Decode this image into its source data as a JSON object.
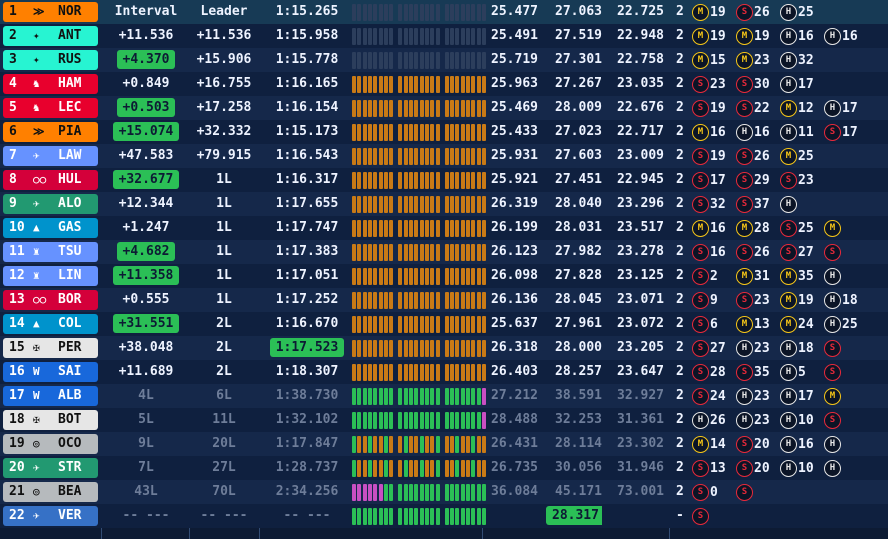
{
  "headers": {
    "interval": "Interval",
    "leader": "Leader"
  },
  "rows": [
    {
      "pos": "1",
      "code": "NOR",
      "logo": "≫",
      "team_color": "#ff8000",
      "pos_text": "#111",
      "interval": "Interval",
      "leader": "Leader",
      "best": "1:15.265",
      "sectors": [
        "25.477",
        "27.063",
        "22.725"
      ],
      "stops": "2",
      "stints": [
        {
          "tyre": "M",
          "lap": "19"
        },
        {
          "tyre": "S",
          "lap": "26"
        },
        {
          "tyre": "H",
          "lap": "25"
        }
      ],
      "lead": true
    },
    {
      "pos": "2",
      "code": "ANT",
      "logo": "✦",
      "team_color": "#27f4d2",
      "pos_text": "#111",
      "interval": "+11.536",
      "leader": "+11.536",
      "best": "1:15.958",
      "sectors": [
        "25.491",
        "27.519",
        "22.948"
      ],
      "stops": "2",
      "stints": [
        {
          "tyre": "M",
          "lap": "19"
        },
        {
          "tyre": "M",
          "lap": "19"
        },
        {
          "tyre": "H",
          "lap": "16"
        },
        {
          "tyre": "H",
          "lap": "16"
        }
      ]
    },
    {
      "pos": "3",
      "code": "RUS",
      "logo": "✦",
      "team_color": "#27f4d2",
      "pos_text": "#111",
      "interval": "+4.370",
      "interval_pill": true,
      "leader": "+15.906",
      "best": "1:15.778",
      "sectors": [
        "25.719",
        "27.301",
        "22.758"
      ],
      "stops": "2",
      "stints": [
        {
          "tyre": "M",
          "lap": "15"
        },
        {
          "tyre": "M",
          "lap": "23"
        },
        {
          "tyre": "H",
          "lap": "32"
        }
      ]
    },
    {
      "pos": "4",
      "code": "HAM",
      "logo": "♞",
      "team_color": "#e8002d",
      "pos_text": "#fff",
      "interval": "+0.849",
      "leader": "+16.755",
      "best": "1:16.165",
      "sectors": [
        "25.963",
        "27.267",
        "23.035"
      ],
      "stops": "2",
      "stints": [
        {
          "tyre": "S",
          "lap": "23"
        },
        {
          "tyre": "S",
          "lap": "30"
        },
        {
          "tyre": "H",
          "lap": "17"
        }
      ]
    },
    {
      "pos": "5",
      "code": "LEC",
      "logo": "♞",
      "team_color": "#e8002d",
      "pos_text": "#fff",
      "interval": "+0.503",
      "interval_pill": true,
      "leader": "+17.258",
      "best": "1:16.154",
      "sectors": [
        "25.469",
        "28.009",
        "22.676"
      ],
      "stops": "2",
      "stints": [
        {
          "tyre": "S",
          "lap": "19"
        },
        {
          "tyre": "S",
          "lap": "22"
        },
        {
          "tyre": "M",
          "lap": "12"
        },
        {
          "tyre": "H",
          "lap": "17"
        }
      ]
    },
    {
      "pos": "6",
      "code": "PIA",
      "logo": "≫",
      "team_color": "#ff8000",
      "pos_text": "#111",
      "interval": "+15.074",
      "interval_pill": true,
      "leader": "+32.332",
      "best": "1:15.173",
      "sectors": [
        "25.433",
        "27.023",
        "22.717"
      ],
      "stops": "2",
      "stints": [
        {
          "tyre": "M",
          "lap": "16"
        },
        {
          "tyre": "H",
          "lap": "16"
        },
        {
          "tyre": "H",
          "lap": "11"
        },
        {
          "tyre": "S",
          "lap": "17"
        }
      ]
    },
    {
      "pos": "7",
      "code": "LAW",
      "logo": "✈",
      "team_color": "#6692ff",
      "pos_text": "#fff",
      "interval": "+47.583",
      "leader": "+79.915",
      "best": "1:16.543",
      "sectors": [
        "25.931",
        "27.603",
        "23.009"
      ],
      "stops": "2",
      "stints": [
        {
          "tyre": "S",
          "lap": "19"
        },
        {
          "tyre": "S",
          "lap": "26"
        },
        {
          "tyre": "M",
          "lap": "25"
        }
      ]
    },
    {
      "pos": "8",
      "code": "HUL",
      "logo": "○○",
      "team_color": "#d4003a",
      "pos_text": "#fff",
      "interval": "+32.677",
      "interval_pill": true,
      "leader": "1L",
      "best": "1:16.317",
      "sectors": [
        "25.921",
        "27.451",
        "22.945"
      ],
      "stops": "2",
      "stints": [
        {
          "tyre": "S",
          "lap": "17"
        },
        {
          "tyre": "S",
          "lap": "29"
        },
        {
          "tyre": "S",
          "lap": "23"
        }
      ]
    },
    {
      "pos": "9",
      "code": "ALO",
      "logo": "✈",
      "team_color": "#229971",
      "pos_text": "#fff",
      "interval": "+12.344",
      "leader": "1L",
      "best": "1:17.655",
      "sectors": [
        "26.319",
        "28.040",
        "23.296"
      ],
      "stops": "2",
      "stints": [
        {
          "tyre": "S",
          "lap": "32"
        },
        {
          "tyre": "S",
          "lap": "37"
        },
        {
          "tyre": "H",
          "lap": ""
        }
      ]
    },
    {
      "pos": "10",
      "code": "GAS",
      "logo": "▲",
      "team_color": "#0093cc",
      "pos_text": "#fff",
      "interval": "+1.247",
      "leader": "1L",
      "best": "1:17.747",
      "sectors": [
        "26.199",
        "28.031",
        "23.517"
      ],
      "stops": "2",
      "stints": [
        {
          "tyre": "M",
          "lap": "16"
        },
        {
          "tyre": "M",
          "lap": "28"
        },
        {
          "tyre": "S",
          "lap": "25"
        },
        {
          "tyre": "M",
          "lap": ""
        }
      ]
    },
    {
      "pos": "11",
      "code": "TSU",
      "logo": "♜",
      "team_color": "#6692ff",
      "pos_text": "#fff",
      "interval": "+4.682",
      "interval_pill": true,
      "leader": "1L",
      "best": "1:17.383",
      "sectors": [
        "26.123",
        "27.982",
        "23.278"
      ],
      "stops": "2",
      "stints": [
        {
          "tyre": "S",
          "lap": "16"
        },
        {
          "tyre": "S",
          "lap": "26"
        },
        {
          "tyre": "S",
          "lap": "27"
        },
        {
          "tyre": "S",
          "lap": ""
        }
      ]
    },
    {
      "pos": "12",
      "code": "LIN",
      "logo": "♜",
      "team_color": "#6692ff",
      "pos_text": "#fff",
      "interval": "+11.358",
      "interval_pill": true,
      "leader": "1L",
      "best": "1:17.051",
      "sectors": [
        "26.098",
        "27.828",
        "23.125"
      ],
      "stops": "2",
      "stints": [
        {
          "tyre": "S",
          "lap": "2"
        },
        {
          "tyre": "M",
          "lap": "31"
        },
        {
          "tyre": "M",
          "lap": "35"
        },
        {
          "tyre": "H",
          "lap": ""
        }
      ]
    },
    {
      "pos": "13",
      "code": "BOR",
      "logo": "○○",
      "team_color": "#d4003a",
      "pos_text": "#fff",
      "interval": "+0.555",
      "leader": "1L",
      "best": "1:17.252",
      "sectors": [
        "26.136",
        "28.045",
        "23.071"
      ],
      "stops": "2",
      "stints": [
        {
          "tyre": "S",
          "lap": "9"
        },
        {
          "tyre": "S",
          "lap": "23"
        },
        {
          "tyre": "M",
          "lap": "19"
        },
        {
          "tyre": "H",
          "lap": "18"
        }
      ]
    },
    {
      "pos": "14",
      "code": "COL",
      "logo": "▲",
      "team_color": "#0093cc",
      "pos_text": "#fff",
      "interval": "+31.551",
      "interval_pill": true,
      "leader": "2L",
      "best": "1:16.670",
      "sectors": [
        "25.637",
        "27.961",
        "23.072"
      ],
      "stops": "2",
      "stints": [
        {
          "tyre": "S",
          "lap": "6"
        },
        {
          "tyre": "M",
          "lap": "13"
        },
        {
          "tyre": "M",
          "lap": "24"
        },
        {
          "tyre": "H",
          "lap": "25"
        }
      ]
    },
    {
      "pos": "15",
      "code": "PER",
      "logo": "✠",
      "team_color": "#e6e6e6",
      "pos_text": "#111",
      "interval": "+38.048",
      "leader": "2L",
      "best": "1:17.523",
      "best_pill": true,
      "sectors": [
        "26.318",
        "28.000",
        "23.205"
      ],
      "stops": "2",
      "stints": [
        {
          "tyre": "S",
          "lap": "27"
        },
        {
          "tyre": "H",
          "lap": "23"
        },
        {
          "tyre": "H",
          "lap": "18"
        },
        {
          "tyre": "S",
          "lap": ""
        }
      ]
    },
    {
      "pos": "16",
      "code": "SAI",
      "logo": "W",
      "team_color": "#1868db",
      "pos_text": "#fff",
      "interval": "+11.689",
      "leader": "2L",
      "best": "1:18.307",
      "sectors": [
        "26.403",
        "28.257",
        "23.647"
      ],
      "stops": "2",
      "stints": [
        {
          "tyre": "S",
          "lap": "28"
        },
        {
          "tyre": "S",
          "lap": "35"
        },
        {
          "tyre": "H",
          "lap": "5"
        },
        {
          "tyre": "S",
          "lap": ""
        }
      ]
    },
    {
      "pos": "17",
      "code": "ALB",
      "logo": "W",
      "team_color": "#1868db",
      "pos_text": "#fff",
      "interval": "4L",
      "leader": "6L",
      "best": "1:38.730",
      "sectors": [
        "27.212",
        "38.591",
        "32.927"
      ],
      "stops": "2",
      "stints": [
        {
          "tyre": "S",
          "lap": "24"
        },
        {
          "tyre": "H",
          "lap": "23"
        },
        {
          "tyre": "H",
          "lap": "17"
        },
        {
          "tyre": "M",
          "lap": ""
        }
      ],
      "dim": true
    },
    {
      "pos": "18",
      "code": "BOT",
      "logo": "✠",
      "team_color": "#e6e6e6",
      "pos_text": "#111",
      "interval": "5L",
      "leader": "11L",
      "best": "1:32.102",
      "sectors": [
        "28.488",
        "32.253",
        "31.361"
      ],
      "stops": "2",
      "stints": [
        {
          "tyre": "H",
          "lap": "26"
        },
        {
          "tyre": "H",
          "lap": "23"
        },
        {
          "tyre": "H",
          "lap": "10"
        },
        {
          "tyre": "S",
          "lap": ""
        }
      ],
      "dim": true
    },
    {
      "pos": "19",
      "code": "OCO",
      "logo": "◎",
      "team_color": "#b6babd",
      "pos_text": "#111",
      "interval": "9L",
      "leader": "20L",
      "best": "1:17.847",
      "sectors": [
        "26.431",
        "28.114",
        "23.302"
      ],
      "stops": "2",
      "stints": [
        {
          "tyre": "M",
          "lap": "14"
        },
        {
          "tyre": "S",
          "lap": "20"
        },
        {
          "tyre": "H",
          "lap": "16"
        },
        {
          "tyre": "H",
          "lap": ""
        }
      ],
      "dim": true
    },
    {
      "pos": "20",
      "code": "STR",
      "logo": "✈",
      "team_color": "#229971",
      "pos_text": "#fff",
      "interval": "7L",
      "leader": "27L",
      "best": "1:28.737",
      "sectors": [
        "26.735",
        "30.056",
        "31.946"
      ],
      "stops": "2",
      "stints": [
        {
          "tyre": "S",
          "lap": "13"
        },
        {
          "tyre": "S",
          "lap": "20"
        },
        {
          "tyre": "H",
          "lap": "10"
        },
        {
          "tyre": "H",
          "lap": ""
        }
      ],
      "dim": true
    },
    {
      "pos": "21",
      "code": "BEA",
      "logo": "◎",
      "team_color": "#b6babd",
      "pos_text": "#111",
      "interval": "43L",
      "leader": "70L",
      "best": "2:34.256",
      "sectors": [
        "36.084",
        "45.171",
        "73.001"
      ],
      "stops": "2",
      "stints": [
        {
          "tyre": "S",
          "lap": "0"
        },
        {
          "tyre": "S",
          "lap": ""
        }
      ],
      "dim": true
    },
    {
      "pos": "22",
      "code": "VER",
      "logo": "✈",
      "team_color": "#3671c6",
      "pos_text": "#fff",
      "interval": "-- ---",
      "leader": "-- ---",
      "best": "-- ---",
      "sectors": [
        "",
        "28.317",
        ""
      ],
      "sector_pill": 1,
      "stops": "-",
      "stints": [
        {
          "tyre": "S",
          "lap": ""
        }
      ],
      "dim": true
    }
  ],
  "mini_colors": {
    "orange": "#c97a16",
    "green": "#2bbf56",
    "purple": "#c94fc2",
    "grey": "#2c3e5c",
    "yellow": "#d6b51e"
  }
}
